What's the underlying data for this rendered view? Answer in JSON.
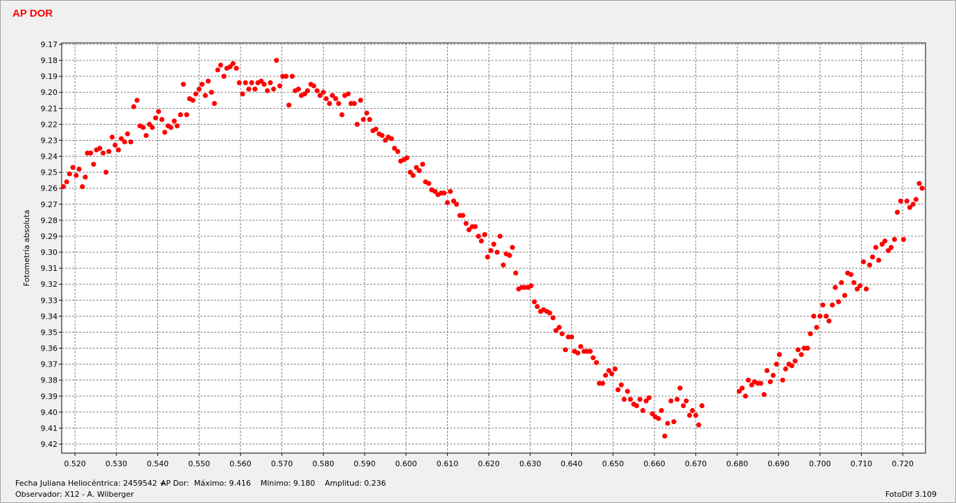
{
  "title": "AP DOR",
  "footer": {
    "line1_date": "Fecha Juliana Heliocéntrica: 2459542 +",
    "line1_stats": "AP Dor:  Máximo: 9.416    Mínimo: 9.180    Amplitud: 0.236",
    "line2": "Observador: X12 - A. Wilberger",
    "version": "FotoDif 3.109"
  },
  "chart_data": {
    "type": "scatter",
    "title": "AP DOR",
    "xlabel": "",
    "ylabel": "Fotometría absoluta",
    "xlim": [
      0.5168,
      0.7255
    ],
    "ylim": [
      9.42,
      9.17
    ],
    "y_inverted": true,
    "grid": true,
    "point_color": "#ff0000",
    "x_ticks": [
      "0.520",
      "0.530",
      "0.540",
      "0.550",
      "0.560",
      "0.570",
      "0.580",
      "0.590",
      "0.600",
      "0.610",
      "0.620",
      "0.630",
      "0.640",
      "0.650",
      "0.660",
      "0.670",
      "0.680",
      "0.690",
      "0.700",
      "0.710",
      "0.720"
    ],
    "y_ticks": [
      "9.17",
      "9.18",
      "9.19",
      "9.20",
      "9.21",
      "9.22",
      "9.23",
      "9.24",
      "9.25",
      "9.26",
      "9.27",
      "9.28",
      "9.29",
      "9.30",
      "9.31",
      "9.32",
      "9.33",
      "9.34",
      "9.35",
      "9.36",
      "9.37",
      "9.38",
      "9.39",
      "9.40",
      "9.41",
      "9.42"
    ],
    "points": [
      [
        0.5172,
        9.259
      ],
      [
        0.518,
        9.256
      ],
      [
        0.5187,
        9.251
      ],
      [
        0.5195,
        9.247
      ],
      [
        0.5203,
        9.252
      ],
      [
        0.521,
        9.248
      ],
      [
        0.5218,
        9.259
      ],
      [
        0.5225,
        9.253
      ],
      [
        0.523,
        9.238
      ],
      [
        0.5238,
        9.238
      ],
      [
        0.5245,
        9.245
      ],
      [
        0.5252,
        9.236
      ],
      [
        0.526,
        9.235
      ],
      [
        0.5268,
        9.238
      ],
      [
        0.5275,
        9.25
      ],
      [
        0.5282,
        9.237
      ],
      [
        0.529,
        9.228
      ],
      [
        0.5297,
        9.233
      ],
      [
        0.5305,
        9.236
      ],
      [
        0.5312,
        9.229
      ],
      [
        0.532,
        9.231
      ],
      [
        0.5327,
        9.226
      ],
      [
        0.5335,
        9.231
      ],
      [
        0.5342,
        9.209
      ],
      [
        0.535,
        9.205
      ],
      [
        0.5357,
        9.221
      ],
      [
        0.5365,
        9.222
      ],
      [
        0.5372,
        9.227
      ],
      [
        0.538,
        9.22
      ],
      [
        0.5387,
        9.222
      ],
      [
        0.5395,
        9.216
      ],
      [
        0.5402,
        9.212
      ],
      [
        0.541,
        9.217
      ],
      [
        0.5417,
        9.225
      ],
      [
        0.5425,
        9.221
      ],
      [
        0.5432,
        9.222
      ],
      [
        0.544,
        9.218
      ],
      [
        0.5447,
        9.221
      ],
      [
        0.5455,
        9.214
      ],
      [
        0.5462,
        9.195
      ],
      [
        0.547,
        9.214
      ],
      [
        0.5477,
        9.204
      ],
      [
        0.5485,
        9.205
      ],
      [
        0.5492,
        9.201
      ],
      [
        0.55,
        9.198
      ],
      [
        0.5507,
        9.195
      ],
      [
        0.5515,
        9.202
      ],
      [
        0.5522,
        9.193
      ],
      [
        0.553,
        9.2
      ],
      [
        0.5537,
        9.207
      ],
      [
        0.5545,
        9.186
      ],
      [
        0.5552,
        9.183
      ],
      [
        0.556,
        9.19
      ],
      [
        0.5567,
        9.185
      ],
      [
        0.5575,
        9.184
      ],
      [
        0.5582,
        9.182
      ],
      [
        0.559,
        9.185
      ],
      [
        0.5597,
        9.194
      ],
      [
        0.5605,
        9.201
      ],
      [
        0.5612,
        9.194
      ],
      [
        0.562,
        9.198
      ],
      [
        0.5627,
        9.194
      ],
      [
        0.5635,
        9.198
      ],
      [
        0.5642,
        9.194
      ],
      [
        0.565,
        9.193
      ],
      [
        0.5657,
        9.195
      ],
      [
        0.5665,
        9.199
      ],
      [
        0.5672,
        9.194
      ],
      [
        0.568,
        9.198
      ],
      [
        0.5687,
        9.18
      ],
      [
        0.5695,
        9.196
      ],
      [
        0.5702,
        9.19
      ],
      [
        0.571,
        9.19
      ],
      [
        0.5717,
        9.208
      ],
      [
        0.5725,
        9.19
      ],
      [
        0.5732,
        9.199
      ],
      [
        0.574,
        9.198
      ],
      [
        0.5747,
        9.202
      ],
      [
        0.5755,
        9.201
      ],
      [
        0.5762,
        9.199
      ],
      [
        0.577,
        9.195
      ],
      [
        0.5777,
        9.196
      ],
      [
        0.5785,
        9.199
      ],
      [
        0.5792,
        9.202
      ],
      [
        0.58,
        9.2
      ],
      [
        0.5807,
        9.204
      ],
      [
        0.5815,
        9.207
      ],
      [
        0.5822,
        9.202
      ],
      [
        0.583,
        9.204
      ],
      [
        0.5837,
        9.207
      ],
      [
        0.5845,
        9.214
      ],
      [
        0.5852,
        9.202
      ],
      [
        0.586,
        9.201
      ],
      [
        0.5867,
        9.207
      ],
      [
        0.5875,
        9.207
      ],
      [
        0.5882,
        9.22
      ],
      [
        0.589,
        9.205
      ],
      [
        0.5897,
        9.217
      ],
      [
        0.5905,
        9.213
      ],
      [
        0.5912,
        9.217
      ],
      [
        0.592,
        9.224
      ],
      [
        0.5927,
        9.223
      ],
      [
        0.5935,
        9.226
      ],
      [
        0.5942,
        9.227
      ],
      [
        0.595,
        9.23
      ],
      [
        0.5957,
        9.228
      ],
      [
        0.5965,
        9.229
      ],
      [
        0.5972,
        9.235
      ],
      [
        0.598,
        9.237
      ],
      [
        0.5987,
        9.243
      ],
      [
        0.5995,
        9.242
      ],
      [
        0.6002,
        9.241
      ],
      [
        0.601,
        9.25
      ],
      [
        0.6017,
        9.252
      ],
      [
        0.6025,
        9.247
      ],
      [
        0.6032,
        9.249
      ],
      [
        0.604,
        9.245
      ],
      [
        0.6047,
        9.256
      ],
      [
        0.6055,
        9.257
      ],
      [
        0.6062,
        9.261
      ],
      [
        0.607,
        9.262
      ],
      [
        0.6077,
        9.264
      ],
      [
        0.6085,
        9.263
      ],
      [
        0.6092,
        9.263
      ],
      [
        0.61,
        9.269
      ],
      [
        0.6107,
        9.262
      ],
      [
        0.6115,
        9.268
      ],
      [
        0.6122,
        9.27
      ],
      [
        0.613,
        9.277
      ],
      [
        0.6137,
        9.277
      ],
      [
        0.6145,
        9.282
      ],
      [
        0.6152,
        9.286
      ],
      [
        0.616,
        9.284
      ],
      [
        0.6167,
        9.284
      ],
      [
        0.6175,
        9.29
      ],
      [
        0.6182,
        9.293
      ],
      [
        0.619,
        9.289
      ],
      [
        0.6197,
        9.303
      ],
      [
        0.6205,
        9.299
      ],
      [
        0.6212,
        9.295
      ],
      [
        0.622,
        9.3
      ],
      [
        0.6227,
        9.29
      ],
      [
        0.6235,
        9.308
      ],
      [
        0.6242,
        9.301
      ],
      [
        0.625,
        9.302
      ],
      [
        0.6257,
        9.297
      ],
      [
        0.6265,
        9.313
      ],
      [
        0.6272,
        9.323
      ],
      [
        0.628,
        9.322
      ],
      [
        0.6287,
        9.322
      ],
      [
        0.6295,
        9.322
      ],
      [
        0.6302,
        9.321
      ],
      [
        0.631,
        9.331
      ],
      [
        0.6317,
        9.334
      ],
      [
        0.6325,
        9.337
      ],
      [
        0.6332,
        9.336
      ],
      [
        0.634,
        9.337
      ],
      [
        0.6347,
        9.338
      ],
      [
        0.6355,
        9.341
      ],
      [
        0.6362,
        9.349
      ],
      [
        0.637,
        9.347
      ],
      [
        0.6377,
        9.351
      ],
      [
        0.6385,
        9.361
      ],
      [
        0.6392,
        9.353
      ],
      [
        0.64,
        9.353
      ],
      [
        0.6407,
        9.362
      ],
      [
        0.6415,
        9.363
      ],
      [
        0.6422,
        9.359
      ],
      [
        0.643,
        9.362
      ],
      [
        0.6437,
        9.362
      ],
      [
        0.6445,
        9.362
      ],
      [
        0.6452,
        9.366
      ],
      [
        0.646,
        9.369
      ],
      [
        0.6467,
        9.382
      ],
      [
        0.6475,
        9.382
      ],
      [
        0.6482,
        9.377
      ],
      [
        0.649,
        9.374
      ],
      [
        0.6497,
        9.376
      ],
      [
        0.6505,
        9.373
      ],
      [
        0.6512,
        9.386
      ],
      [
        0.652,
        9.383
      ],
      [
        0.6527,
        9.392
      ],
      [
        0.6535,
        9.387
      ],
      [
        0.6542,
        9.392
      ],
      [
        0.655,
        9.395
      ],
      [
        0.6557,
        9.396
      ],
      [
        0.6565,
        9.392
      ],
      [
        0.6572,
        9.399
      ],
      [
        0.658,
        9.393
      ],
      [
        0.6587,
        9.391
      ],
      [
        0.6595,
        9.401
      ],
      [
        0.6602,
        9.403
      ],
      [
        0.661,
        9.404
      ],
      [
        0.6617,
        9.399
      ],
      [
        0.6625,
        9.415
      ],
      [
        0.6632,
        9.407
      ],
      [
        0.664,
        9.393
      ],
      [
        0.6647,
        9.406
      ],
      [
        0.6655,
        9.392
      ],
      [
        0.6662,
        9.385
      ],
      [
        0.667,
        9.396
      ],
      [
        0.6677,
        9.393
      ],
      [
        0.6685,
        9.402
      ],
      [
        0.6692,
        9.399
      ],
      [
        0.67,
        9.402
      ],
      [
        0.6707,
        9.408
      ],
      [
        0.6715,
        9.396
      ],
      [
        0.6805,
        9.387
      ],
      [
        0.6812,
        9.385
      ],
      [
        0.682,
        9.39
      ],
      [
        0.6827,
        9.38
      ],
      [
        0.6835,
        9.383
      ],
      [
        0.6842,
        9.381
      ],
      [
        0.685,
        9.382
      ],
      [
        0.6857,
        9.382
      ],
      [
        0.6865,
        9.389
      ],
      [
        0.6872,
        9.374
      ],
      [
        0.688,
        9.381
      ],
      [
        0.6887,
        9.377
      ],
      [
        0.6895,
        9.37
      ],
      [
        0.6902,
        9.364
      ],
      [
        0.691,
        9.38
      ],
      [
        0.6917,
        9.373
      ],
      [
        0.6925,
        9.37
      ],
      [
        0.6932,
        9.371
      ],
      [
        0.694,
        9.368
      ],
      [
        0.6947,
        9.361
      ],
      [
        0.6955,
        9.364
      ],
      [
        0.6962,
        9.36
      ],
      [
        0.697,
        9.36
      ],
      [
        0.6977,
        9.351
      ],
      [
        0.6985,
        9.34
      ],
      [
        0.6992,
        9.347
      ],
      [
        0.7,
        9.34
      ],
      [
        0.7007,
        9.333
      ],
      [
        0.7015,
        9.34
      ],
      [
        0.7022,
        9.343
      ],
      [
        0.703,
        9.333
      ],
      [
        0.7037,
        9.322
      ],
      [
        0.7045,
        9.331
      ],
      [
        0.7052,
        9.319
      ],
      [
        0.706,
        9.327
      ],
      [
        0.7067,
        9.313
      ],
      [
        0.7075,
        9.314
      ],
      [
        0.7082,
        9.319
      ],
      [
        0.709,
        9.323
      ],
      [
        0.7097,
        9.321
      ],
      [
        0.7105,
        9.306
      ],
      [
        0.7112,
        9.323
      ],
      [
        0.712,
        9.308
      ],
      [
        0.7127,
        9.303
      ],
      [
        0.7135,
        9.297
      ],
      [
        0.7142,
        9.305
      ],
      [
        0.715,
        9.295
      ],
      [
        0.7157,
        9.293
      ],
      [
        0.7165,
        9.299
      ],
      [
        0.7172,
        9.297
      ],
      [
        0.718,
        9.292
      ],
      [
        0.7187,
        9.275
      ],
      [
        0.7195,
        9.268
      ],
      [
        0.7202,
        9.292
      ],
      [
        0.721,
        9.268
      ],
      [
        0.7217,
        9.272
      ],
      [
        0.7225,
        9.27
      ],
      [
        0.7232,
        9.267
      ],
      [
        0.724,
        9.257
      ],
      [
        0.7247,
        9.26
      ]
    ]
  }
}
